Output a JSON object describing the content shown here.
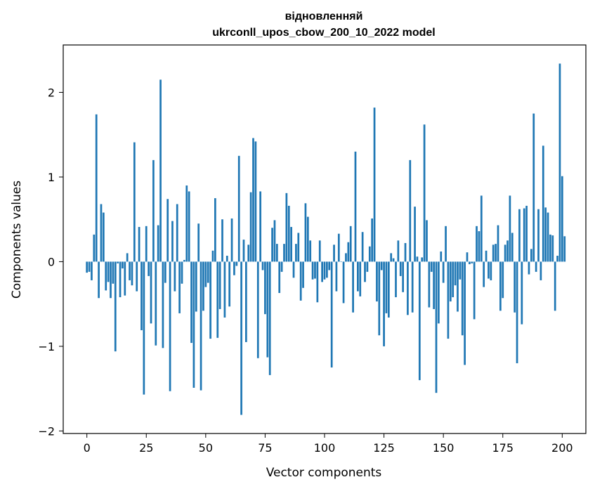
{
  "chart_data": {
    "type": "bar",
    "title": "відновленняй",
    "subtitle": "ukrconll_upos_cbow_200_10_2022 model",
    "xlabel": "Vector components",
    "ylabel": "Components values",
    "xlim": [
      -9.95,
      209.95
    ],
    "ylim": [
      -2.03,
      2.56
    ],
    "grid": false,
    "legend": "none",
    "bar_color": "#1f77b4",
    "x_ticks": [
      0,
      25,
      50,
      75,
      100,
      125,
      150,
      175,
      200
    ],
    "x_tick_labels": [
      "0",
      "25",
      "50",
      "75",
      "100",
      "125",
      "150",
      "175",
      "200"
    ],
    "y_ticks": [
      -2,
      -1,
      0,
      1,
      2
    ],
    "y_tick_labels": [
      "−2",
      "−1",
      "0",
      "1",
      "2"
    ],
    "x_start": 0,
    "values": [
      -0.13,
      -0.12,
      -0.22,
      0.32,
      1.74,
      -0.43,
      0.68,
      0.58,
      -0.34,
      -0.24,
      -0.43,
      -0.26,
      -1.06,
      -0.02,
      -0.42,
      -0.08,
      -0.4,
      0.1,
      -0.22,
      -0.28,
      1.41,
      -0.35,
      0.41,
      -0.81,
      -1.57,
      0.42,
      -0.17,
      -0.73,
      1.2,
      -0.99,
      0.43,
      2.15,
      -1.02,
      -0.25,
      0.74,
      -1.53,
      0.48,
      -0.35,
      0.68,
      -0.61,
      -0.26,
      0.02,
      0.9,
      0.83,
      -0.96,
      -1.49,
      -0.59,
      0.45,
      -1.52,
      -0.58,
      -0.3,
      -0.25,
      -0.91,
      0.13,
      0.75,
      -0.9,
      -0.56,
      0.5,
      -0.66,
      0.07,
      -0.53,
      0.51,
      -0.16,
      -0.05,
      1.25,
      -1.81,
      0.26,
      -0.95,
      0.2,
      0.82,
      1.46,
      1.42,
      -1.14,
      0.83,
      -0.1,
      -0.62,
      -1.13,
      -1.34,
      0.4,
      0.49,
      0.21,
      -0.37,
      -0.12,
      0.21,
      0.81,
      0.66,
      0.41,
      -0.19,
      0.21,
      0.34,
      -0.46,
      -0.31,
      0.69,
      0.53,
      0.25,
      -0.21,
      -0.2,
      -0.48,
      0.25,
      -0.24,
      -0.21,
      -0.19,
      -0.1,
      -1.25,
      0.2,
      -0.35,
      0.33,
      0.0,
      -0.49,
      0.1,
      0.23,
      0.42,
      -0.6,
      1.3,
      -0.35,
      -0.41,
      0.35,
      -0.24,
      -0.12,
      0.18,
      0.51,
      1.82,
      -0.47,
      -0.87,
      -0.1,
      -1.0,
      -0.61,
      -0.66,
      0.1,
      0.04,
      -0.42,
      0.25,
      -0.17,
      -0.36,
      0.22,
      -0.63,
      1.2,
      -0.6,
      0.65,
      0.06,
      -1.4,
      0.05,
      1.62,
      0.49,
      -0.54,
      -0.12,
      -0.56,
      -1.55,
      -0.73,
      0.12,
      -0.25,
      0.42,
      -0.91,
      -0.47,
      -0.42,
      -0.28,
      -0.59,
      -0.21,
      -0.87,
      -1.22,
      0.11,
      -0.03,
      -0.02,
      -0.68,
      0.42,
      0.36,
      0.78,
      -0.3,
      0.13,
      -0.2,
      -0.22,
      0.2,
      0.21,
      0.43,
      -0.58,
      -0.43,
      0.2,
      0.25,
      0.78,
      0.34,
      -0.6,
      -1.2,
      0.62,
      -0.74,
      0.63,
      0.66,
      -0.15,
      0.15,
      1.75,
      -0.12,
      0.62,
      -0.22,
      1.37,
      0.64,
      0.58,
      0.32,
      0.31,
      -0.58,
      0.07,
      2.34,
      1.01,
      0.3
    ]
  }
}
